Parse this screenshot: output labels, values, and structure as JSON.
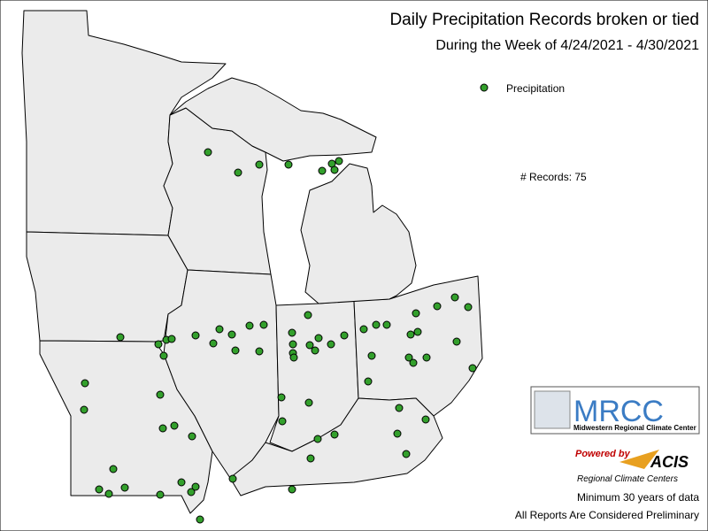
{
  "header": {
    "title": "Daily Precipitation Records broken or tied",
    "subtitle": "During the Week of 4/24/2021 - 4/30/2021"
  },
  "legend": {
    "label": "Precipitation"
  },
  "record_count": "# Records: 75",
  "logos": {
    "mrcc": "MRCC",
    "mrcc_name": "Midwestern Regional Climate Center",
    "powered_by": "Powered by",
    "acis": "ACIS",
    "acis_name": "Regional Climate Centers"
  },
  "footer": {
    "note1": "Minimum 30 years of data",
    "note2": "All Reports Are Considered Preliminary"
  }
}
